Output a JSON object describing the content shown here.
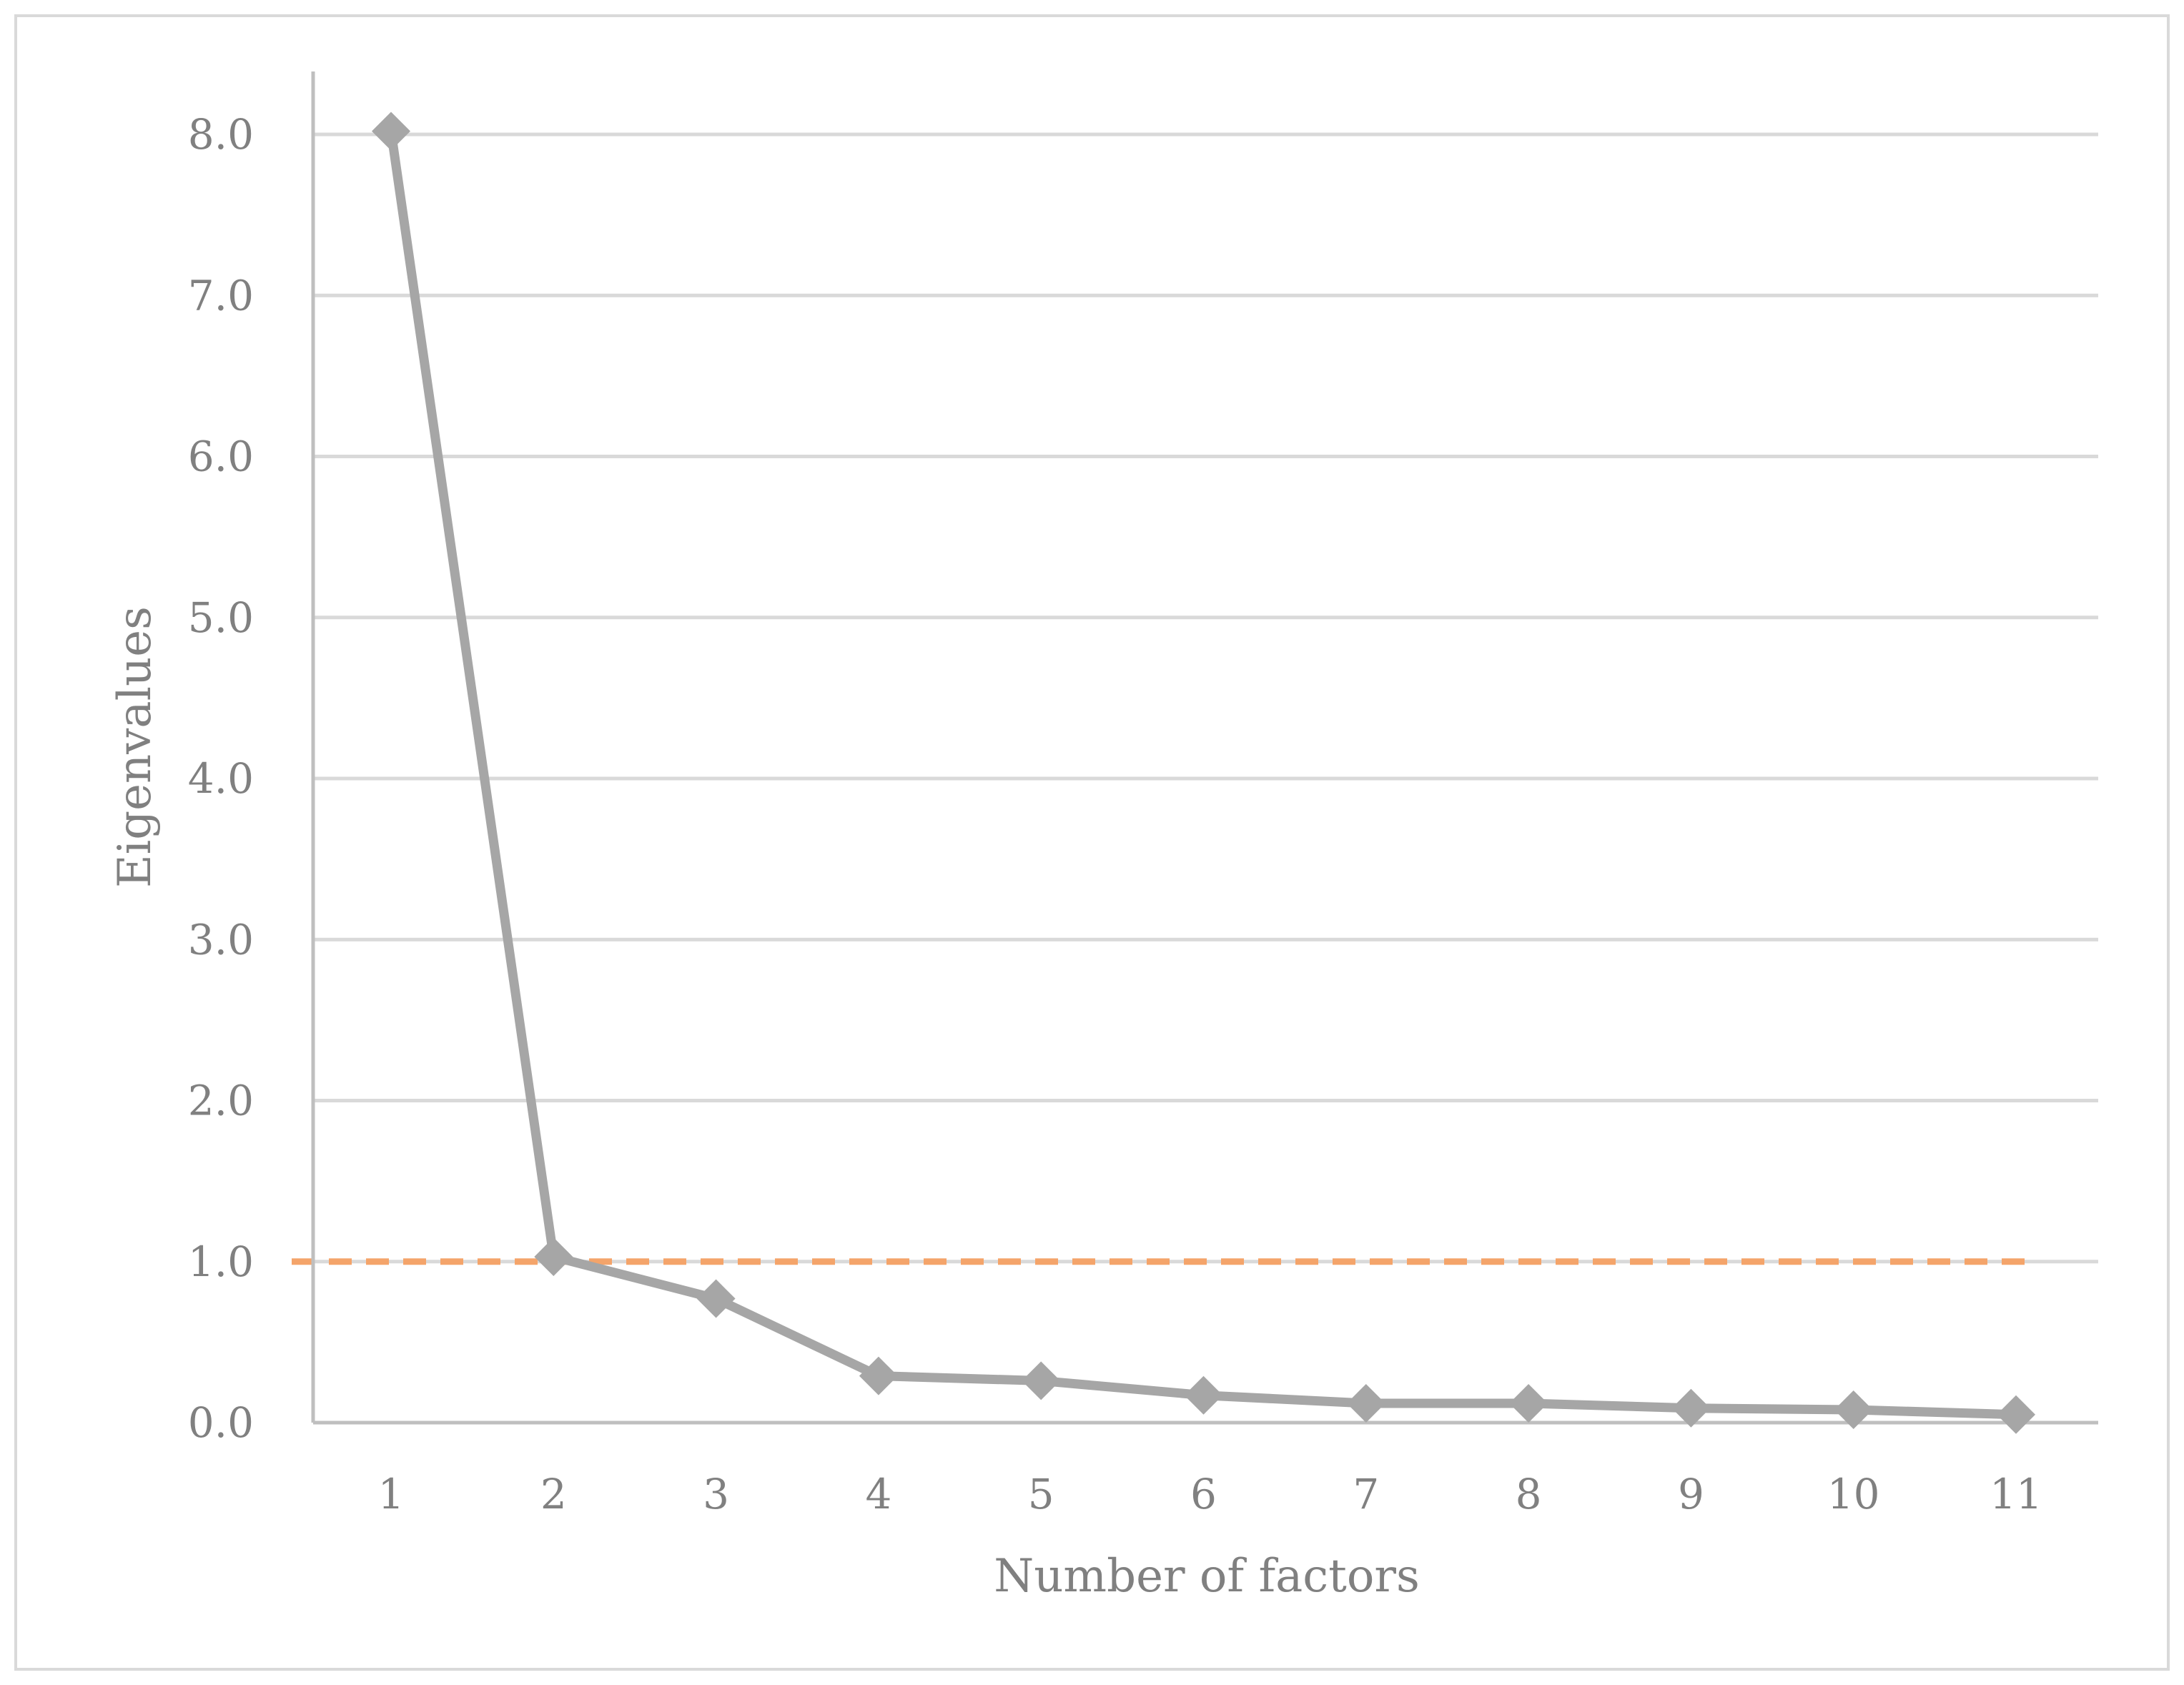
{
  "chart_data": {
    "type": "line",
    "title": "",
    "xlabel": "Number of factors",
    "ylabel": "Eigenvalues",
    "categories": [
      "1",
      "2",
      "3",
      "4",
      "5",
      "6",
      "7",
      "8",
      "9",
      "10",
      "11"
    ],
    "x": [
      1,
      2,
      3,
      4,
      5,
      6,
      7,
      8,
      9,
      10,
      11
    ],
    "series": [
      {
        "values": [
          8.02,
          1.03,
          0.77,
          0.29,
          0.26,
          0.17,
          0.12,
          0.12,
          0.09,
          0.08,
          0.05
        ],
        "color": "#a6a6a6",
        "marker": "diamond"
      }
    ],
    "reference_line": {
      "y": 1.0,
      "style": "dashed",
      "color": "#f4a46a"
    },
    "ylim": [
      0,
      8
    ],
    "yticks": [
      "0.0",
      "1.0",
      "2.0",
      "3.0",
      "4.0",
      "5.0",
      "6.0",
      "7.0",
      "8.0"
    ],
    "grid": true,
    "legend": "none",
    "colors": {
      "gridline": "#d9d9d9",
      "axis": "#bfbfbf",
      "text": "#808080",
      "frame": "#d9d9d9"
    }
  }
}
